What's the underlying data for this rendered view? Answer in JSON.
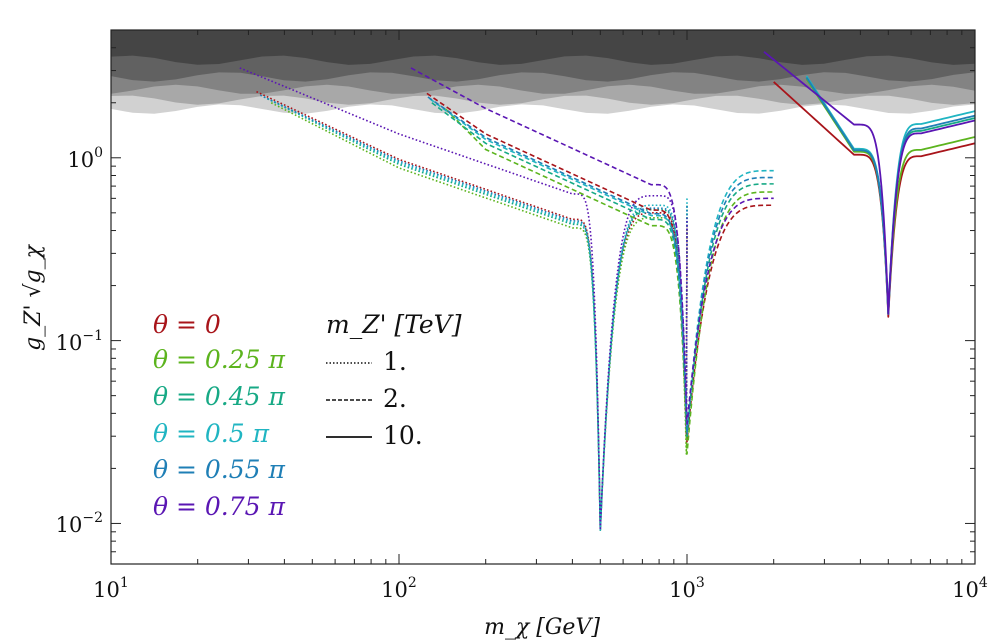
{
  "chart_data": {
    "type": "line",
    "xscale": "log",
    "yscale": "log",
    "xlim": [
      10,
      10000
    ],
    "ylim": [
      0.006,
      5
    ],
    "xlabel": "m_χ [GeV]",
    "ylabel": "g_Z' √g_χ",
    "x_ticks": [
      {
        "value": 10,
        "base": "10",
        "exp": "1"
      },
      {
        "value": 100,
        "base": "10",
        "exp": "2"
      },
      {
        "value": 1000,
        "base": "10",
        "exp": "3"
      },
      {
        "value": 10000,
        "base": "10",
        "exp": "4"
      }
    ],
    "y_ticks": [
      {
        "value": 0.01,
        "base": "10",
        "exp": "−2"
      },
      {
        "value": 0.1,
        "base": "10",
        "exp": "−1"
      },
      {
        "value": 1,
        "base": "10",
        "exp": "0"
      }
    ],
    "excluded_band": {
      "lower": 1.85,
      "upper": 5,
      "color": "#333333",
      "description": "perturbativity (shaded)"
    },
    "legend_theta": [
      {
        "label": "θ = 0",
        "color": "#a8141a"
      },
      {
        "label": "θ = 0.25 π",
        "color": "#5cb41e"
      },
      {
        "label": "θ = 0.45 π",
        "color": "#17a985"
      },
      {
        "label": "θ = 0.5 π",
        "color": "#20b5c2"
      },
      {
        "label": "θ = 0.55 π",
        "color": "#1f7fb6"
      },
      {
        "label": "θ = 0.75 π",
        "color": "#5a16b3"
      }
    ],
    "legend_mass_title": "m_Z' [TeV]",
    "legend_mass": [
      {
        "label": "1.",
        "dash": "dotted"
      },
      {
        "label": "2.",
        "dash": "dashed"
      },
      {
        "label": "10.",
        "dash": "solid"
      }
    ],
    "series": [
      {
        "theta": "0",
        "mZ_TeV": 1,
        "color": "#a8141a",
        "dash": "dotted",
        "x_start": 32,
        "y_start": 2.3,
        "y_at_100": 0.98,
        "x_dip": 500,
        "y_dip": 0.0092,
        "y_peak": 0.5,
        "x_dip2": 1000,
        "y_dip2": 0.03,
        "x_end": 1000,
        "y_end": 0.42
      },
      {
        "theta": "0.25π",
        "mZ_TeV": 1,
        "color": "#5cb41e",
        "dotted": true,
        "dash": "dotted",
        "x_start": 36,
        "y_start": 2.0,
        "y_at_100": 0.88,
        "x_dip": 500,
        "y_dip": 0.0092,
        "y_peak": 0.47,
        "x_dip2": 1000,
        "y_dip2": 0.024,
        "x_end": 1000,
        "y_end": 0.4
      },
      {
        "theta": "0.45π",
        "mZ_TeV": 1,
        "color": "#17a985",
        "dash": "dotted",
        "x_start": 35,
        "y_start": 2.1,
        "y_at_100": 0.92,
        "x_dip": 500,
        "y_dip": 0.0092,
        "y_peak": 0.52,
        "x_dip2": 1000,
        "y_dip2": 0.032,
        "x_end": 1000,
        "y_end": 0.55
      },
      {
        "theta": "0.5π",
        "mZ_TeV": 1,
        "color": "#20b5c2",
        "dash": "dotted",
        "x_start": 34,
        "y_start": 2.15,
        "y_at_100": 0.94,
        "x_dip": 500,
        "y_dip": 0.0092,
        "y_peak": 0.55,
        "x_dip2": 1000,
        "y_dip2": 0.034,
        "x_end": 1000,
        "y_end": 0.6
      },
      {
        "theta": "0.55π",
        "mZ_TeV": 1,
        "color": "#1f7fb6",
        "dash": "dotted",
        "x_start": 33,
        "y_start": 2.2,
        "y_at_100": 0.96,
        "x_dip": 500,
        "y_dip": 0.0092,
        "y_peak": 0.53,
        "x_dip2": 1000,
        "y_dip2": 0.033,
        "x_end": 1000,
        "y_end": 0.55
      },
      {
        "theta": "0.75π",
        "mZ_TeV": 1,
        "color": "#5a16b3",
        "dash": "dotted",
        "x_start": 28,
        "y_start": 3.1,
        "y_at_100": 1.35,
        "x_dip": 500,
        "y_dip": 0.0092,
        "y_peak": 0.62,
        "x_dip2": 1000,
        "y_dip2": 0.036,
        "x_end": 1000,
        "y_end": 0.47
      },
      {
        "theta": "0",
        "mZ_TeV": 2,
        "color": "#a8141a",
        "dash": "dashed",
        "x_start": 125,
        "y_start": 2.25,
        "x_dip": 1000,
        "y_dip": 0.028,
        "x_end": 2000,
        "y_end": 0.55
      },
      {
        "theta": "0.25π",
        "mZ_TeV": 2,
        "color": "#5cb41e",
        "dash": "dashed",
        "x_start": 145,
        "y_start": 1.85,
        "x_dip": 1000,
        "y_dip": 0.024,
        "x_end": 2000,
        "y_end": 0.65
      },
      {
        "theta": "0.45π",
        "mZ_TeV": 2,
        "color": "#17a985",
        "dash": "dashed",
        "x_start": 130,
        "y_start": 2.0,
        "x_dip": 1000,
        "y_dip": 0.03,
        "x_end": 2000,
        "y_end": 0.72
      },
      {
        "theta": "0.5π",
        "mZ_TeV": 2,
        "color": "#20b5c2",
        "dash": "dashed",
        "x_start": 128,
        "y_start": 2.1,
        "x_dip": 1000,
        "y_dip": 0.032,
        "x_end": 2000,
        "y_end": 0.85
      },
      {
        "theta": "0.55π",
        "mZ_TeV": 2,
        "color": "#1f7fb6",
        "dash": "dashed",
        "x_start": 126,
        "y_start": 2.15,
        "x_dip": 1000,
        "y_dip": 0.031,
        "x_end": 2000,
        "y_end": 0.78
      },
      {
        "theta": "0.75π",
        "mZ_TeV": 2,
        "color": "#5a16b3",
        "dash": "dashed",
        "x_start": 110,
        "y_start": 3.1,
        "x_dip": 1000,
        "y_dip": 0.035,
        "x_end": 2000,
        "y_end": 0.6
      },
      {
        "theta": "0",
        "mZ_TeV": 10,
        "color": "#a8141a",
        "dash": "solid",
        "x_start": 2000,
        "y_start": 2.6,
        "x_dip": 5000,
        "y_dip": 0.135,
        "x_end": 10000,
        "y_end": 1.2
      },
      {
        "theta": "0.25π",
        "mZ_TeV": 10,
        "color": "#5cb41e",
        "dash": "solid",
        "x_start": 2600,
        "y_start": 2.7,
        "x_dip": 5000,
        "y_dip": 0.14,
        "x_end": 10000,
        "y_end": 1.3
      },
      {
        "theta": "0.45π",
        "mZ_TeV": 10,
        "color": "#17a985",
        "dash": "solid",
        "x_start": 2600,
        "y_start": 2.75,
        "x_dip": 5000,
        "y_dip": 0.14,
        "x_end": 10000,
        "y_end": 1.65
      },
      {
        "theta": "0.5π",
        "mZ_TeV": 10,
        "color": "#20b5c2",
        "dash": "solid",
        "x_start": 2600,
        "y_start": 2.8,
        "x_dip": 5000,
        "y_dip": 0.14,
        "x_end": 10000,
        "y_end": 1.8
      },
      {
        "theta": "0.55π",
        "mZ_TeV": 10,
        "color": "#1f7fb6",
        "dash": "solid",
        "x_start": 2600,
        "y_start": 2.75,
        "x_dip": 5000,
        "y_dip": 0.14,
        "x_end": 10000,
        "y_end": 1.7
      },
      {
        "theta": "0.75π",
        "mZ_TeV": 10,
        "color": "#5a16b3",
        "dash": "solid",
        "x_start": 1850,
        "y_start": 3.8,
        "x_dip": 5000,
        "y_dip": 0.14,
        "x_end": 10000,
        "y_end": 1.6
      }
    ]
  }
}
